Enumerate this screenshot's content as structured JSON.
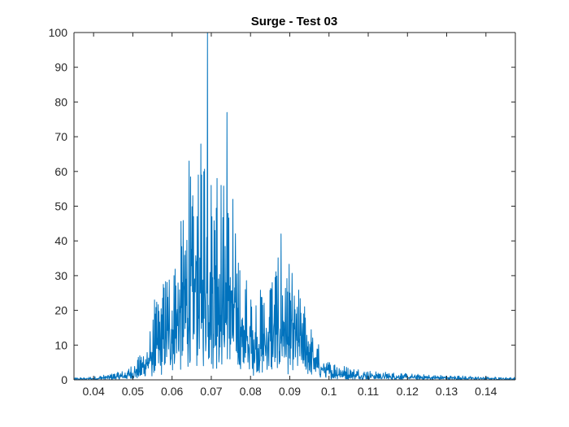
{
  "chart_data": {
    "type": "line",
    "title": "Surge - Test 03",
    "xlabel": "",
    "ylabel": "",
    "xlim": [
      0.035,
      0.1475
    ],
    "ylim": [
      0,
      100
    ],
    "grid": false,
    "legend": "none",
    "x_ticks": [
      0.04,
      0.05,
      0.06,
      0.07,
      0.08,
      0.09,
      0.1,
      0.11,
      0.12,
      0.13,
      0.14
    ],
    "x_tick_labels": [
      "0.04",
      "0.05",
      "0.06",
      "0.07",
      "0.08",
      "0.09",
      "0.1",
      "0.11",
      "0.12",
      "0.13",
      "0.14"
    ],
    "y_ticks": [
      0,
      10,
      20,
      30,
      40,
      50,
      60,
      70,
      80,
      90,
      100
    ],
    "y_tick_labels": [
      "0",
      "10",
      "20",
      "30",
      "40",
      "50",
      "60",
      "70",
      "80",
      "90",
      "100"
    ],
    "series": [
      {
        "name": "Surge",
        "color": "#0072BD",
        "envelope_x": [
          0.035,
          0.04,
          0.045,
          0.048,
          0.05,
          0.052,
          0.054,
          0.056,
          0.058,
          0.06,
          0.062,
          0.064,
          0.066,
          0.068,
          0.07,
          0.072,
          0.074,
          0.076,
          0.078,
          0.08,
          0.082,
          0.084,
          0.086,
          0.088,
          0.09,
          0.092,
          0.094,
          0.096,
          0.098,
          0.1,
          0.105,
          0.11,
          0.115,
          0.12,
          0.125,
          0.13,
          0.135,
          0.14,
          0.145,
          0.1475
        ],
        "envelope_y": [
          0.3,
          0.5,
          1.0,
          1.5,
          2.5,
          4.0,
          7.0,
          12.0,
          16.0,
          20.0,
          24.0,
          30.0,
          36.0,
          38.0,
          35.0,
          33.0,
          30.0,
          24.0,
          18.0,
          15.0,
          14.0,
          15.0,
          18.0,
          20.0,
          18.0,
          15.0,
          12.0,
          8.0,
          4.5,
          3.0,
          2.0,
          1.5,
          1.2,
          1.0,
          0.8,
          0.7,
          0.6,
          0.5,
          0.4,
          0.4
        ],
        "peaks": [
          {
            "x": 0.0555,
            "y": 23
          },
          {
            "x": 0.0605,
            "y": 30
          },
          {
            "x": 0.0627,
            "y": 28
          },
          {
            "x": 0.0643,
            "y": 63
          },
          {
            "x": 0.0655,
            "y": 47
          },
          {
            "x": 0.0667,
            "y": 59
          },
          {
            "x": 0.0675,
            "y": 59
          },
          {
            "x": 0.069,
            "y": 100
          },
          {
            "x": 0.07,
            "y": 56
          },
          {
            "x": 0.0715,
            "y": 58
          },
          {
            "x": 0.0725,
            "y": 56
          },
          {
            "x": 0.074,
            "y": 77
          },
          {
            "x": 0.0755,
            "y": 52
          },
          {
            "x": 0.0787,
            "y": 26
          },
          {
            "x": 0.0855,
            "y": 28
          },
          {
            "x": 0.0878,
            "y": 42
          },
          {
            "x": 0.09,
            "y": 25
          },
          {
            "x": 0.0935,
            "y": 19
          }
        ]
      }
    ]
  }
}
